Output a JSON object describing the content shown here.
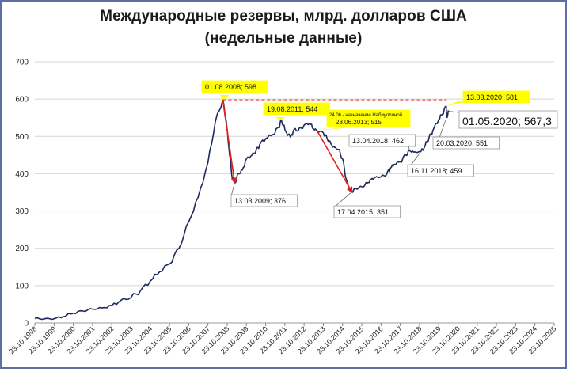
{
  "chart_data": {
    "type": "line",
    "title": "Международные резервы, млрд. долларов США",
    "subtitle": "(недельные данные)",
    "ylim": [
      0,
      700
    ],
    "yticks": [
      0,
      100,
      200,
      300,
      400,
      500,
      600,
      700
    ],
    "x_ticks": [
      "23.10.1998",
      "23.10.1999",
      "23.10.2000",
      "23.10.2001",
      "23.10.2002",
      "23.10.2003",
      "23.10.2004",
      "23.10.2005",
      "23.10.2006",
      "23.10.2007",
      "23.10.2008",
      "23.10.2009",
      "23.10.2010",
      "23.10.2011",
      "23.10.2012",
      "23.10.2013",
      "23.10.2014",
      "23.10.2015",
      "23.10.2016",
      "23.10.2017",
      "23.10.2018",
      "23.10.2019",
      "23.10.2020",
      "23.10.2021",
      "23.10.2022",
      "23.10.2023",
      "23.10.2024",
      "23.10.2025"
    ],
    "series": [
      {
        "color": "#1f2a5c",
        "points": [
          [
            1998.81,
            12
          ],
          [
            1999.3,
            11
          ],
          [
            1999.81,
            11
          ],
          [
            2000.3,
            17
          ],
          [
            2000.81,
            26
          ],
          [
            2001.3,
            32
          ],
          [
            2001.81,
            37
          ],
          [
            2002.3,
            40
          ],
          [
            2002.81,
            47
          ],
          [
            2003.3,
            61
          ],
          [
            2003.81,
            68
          ],
          [
            2004.3,
            86
          ],
          [
            2004.81,
            112
          ],
          [
            2005.3,
            137
          ],
          [
            2005.81,
            158
          ],
          [
            2006.3,
            200
          ],
          [
            2006.81,
            271
          ],
          [
            2007.3,
            337
          ],
          [
            2007.81,
            430
          ],
          [
            2008.2,
            540
          ],
          [
            2008.58,
            598
          ],
          [
            2008.75,
            545
          ],
          [
            2008.9,
            470
          ],
          [
            2009.05,
            395
          ],
          [
            2009.2,
            376
          ],
          [
            2009.4,
            400
          ],
          [
            2009.6,
            410
          ],
          [
            2009.81,
            440
          ],
          [
            2010.1,
            450
          ],
          [
            2010.3,
            460
          ],
          [
            2010.5,
            478
          ],
          [
            2010.81,
            494
          ],
          [
            2011.2,
            505
          ],
          [
            2011.5,
            525
          ],
          [
            2011.63,
            544
          ],
          [
            2011.81,
            518
          ],
          [
            2012.1,
            498
          ],
          [
            2012.3,
            520
          ],
          [
            2012.5,
            515
          ],
          [
            2012.81,
            530
          ],
          [
            2013.1,
            535
          ],
          [
            2013.3,
            520
          ],
          [
            2013.49,
            515
          ],
          [
            2013.81,
            510
          ],
          [
            2014.0,
            495
          ],
          [
            2014.2,
            480
          ],
          [
            2014.4,
            470
          ],
          [
            2014.6,
            465
          ],
          [
            2014.81,
            440
          ],
          [
            2015.0,
            385
          ],
          [
            2015.15,
            360
          ],
          [
            2015.29,
            351
          ],
          [
            2015.5,
            360
          ],
          [
            2015.81,
            365
          ],
          [
            2016.1,
            375
          ],
          [
            2016.3,
            385
          ],
          [
            2016.5,
            390
          ],
          [
            2016.81,
            392
          ],
          [
            2017.1,
            398
          ],
          [
            2017.3,
            415
          ],
          [
            2017.5,
            425
          ],
          [
            2017.81,
            432
          ],
          [
            2018.1,
            450
          ],
          [
            2018.29,
            462
          ],
          [
            2018.5,
            458
          ],
          [
            2018.88,
            459
          ],
          [
            2019.1,
            475
          ],
          [
            2019.3,
            495
          ],
          [
            2019.5,
            515
          ],
          [
            2019.81,
            545
          ],
          [
            2020.0,
            560
          ],
          [
            2020.2,
            581
          ],
          [
            2020.22,
            551
          ],
          [
            2020.33,
            567.3
          ]
        ]
      }
    ],
    "reference_line": {
      "y": 598,
      "color": "#e03030",
      "style": "dashed"
    },
    "arrows": [
      {
        "from": [
          2008.58,
          598
        ],
        "to": [
          2009.2,
          376
        ],
        "color": "#e02020"
      },
      {
        "from": [
          2013.49,
          515
        ],
        "to": [
          2015.29,
          351
        ],
        "color": "#e02020"
      }
    ],
    "annotations": [
      {
        "text": "01.08.2008; 598",
        "x": 2008.58,
        "y": 598,
        "style": "yellow"
      },
      {
        "text": "19.08.2011; 544",
        "x": 2011.63,
        "y": 544,
        "style": "yellow"
      },
      {
        "text": "24.06 - назначение Набиуллиной",
        "text2": "28.06.2013; 515",
        "x": 2013.49,
        "y": 515,
        "style": "yellow-small"
      },
      {
        "text": "13.03.2020; 581",
        "x": 2020.2,
        "y": 581,
        "style": "yellow"
      },
      {
        "text": "13.03.2009; 376",
        "x": 2009.2,
        "y": 376,
        "style": "box"
      },
      {
        "text": "17.04.2015; 351",
        "x": 2015.29,
        "y": 351,
        "style": "box"
      },
      {
        "text": "13.04.2018; 462",
        "x": 2018.29,
        "y": 462,
        "style": "box"
      },
      {
        "text": "16.11.2018; 459",
        "x": 2018.88,
        "y": 459,
        "style": "box"
      },
      {
        "text": "20.03.2020; 551",
        "x": 2020.22,
        "y": 551,
        "style": "box"
      },
      {
        "text": "01.05.2020; 567,3",
        "x": 2020.33,
        "y": 567.3,
        "style": "box-large"
      }
    ]
  }
}
